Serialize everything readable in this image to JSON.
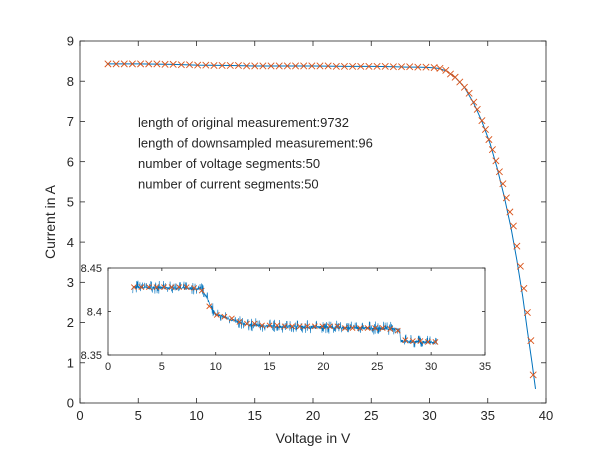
{
  "chart_data": [
    {
      "type": "line",
      "xlabel": "Voltage in V",
      "ylabel": "Current in A",
      "xlim": [
        0,
        40
      ],
      "ylim": [
        0,
        9
      ],
      "xticks": [
        0,
        5,
        10,
        15,
        20,
        25,
        30,
        35,
        40
      ],
      "yticks": [
        0,
        1,
        2,
        3,
        4,
        5,
        6,
        7,
        8,
        9
      ],
      "grid": false,
      "annotations": [
        "length of original measurement:9732",
        "length of downsampled measurement:96",
        "number of voltage segments:50",
        "number of current segments:50"
      ],
      "series": [
        {
          "style": "line",
          "color": "#0072bd",
          "x": [
            2.3,
            5,
            8,
            10,
            13,
            15,
            18,
            20,
            23,
            25,
            27,
            28,
            29,
            30,
            30.8,
            31.5,
            32.2,
            33,
            33.8,
            34.5,
            35.2,
            35.8,
            36.4,
            37,
            37.5,
            38,
            38.4,
            38.8,
            39.1
          ],
          "y": [
            8.43,
            8.43,
            8.42,
            8.4,
            8.39,
            8.38,
            8.38,
            8.38,
            8.37,
            8.37,
            8.36,
            8.35,
            8.35,
            8.34,
            8.32,
            8.25,
            8.1,
            7.85,
            7.45,
            7.0,
            6.45,
            5.85,
            5.15,
            4.35,
            3.55,
            2.65,
            1.8,
            1.0,
            0.35
          ]
        },
        {
          "style": "markers",
          "marker": "x",
          "color": "#d95319",
          "x": [
            2.4,
            3.1,
            3.8,
            4.5,
            5.2,
            5.9,
            6.6,
            7.3,
            8.0,
            8.7,
            9.4,
            10.1,
            10.8,
            11.5,
            12.2,
            12.9,
            13.6,
            14.3,
            15.0,
            15.7,
            16.4,
            17.1,
            17.8,
            18.5,
            19.2,
            19.9,
            20.6,
            21.3,
            22.0,
            22.7,
            23.4,
            24.1,
            24.8,
            25.5,
            26.2,
            26.9,
            27.6,
            28.3,
            29.0,
            29.7,
            30.4,
            30.9,
            31.4,
            31.8,
            32.2,
            32.6,
            33.0,
            33.4,
            33.8,
            34.1,
            34.5,
            34.8,
            35.1,
            35.4,
            35.7,
            36.0,
            36.3,
            36.6,
            36.9,
            37.2,
            37.5,
            37.8,
            38.1,
            38.4,
            38.7,
            38.9
          ],
          "y": [
            8.43,
            8.43,
            8.43,
            8.43,
            8.43,
            8.43,
            8.43,
            8.42,
            8.42,
            8.41,
            8.41,
            8.4,
            8.4,
            8.39,
            8.39,
            8.39,
            8.39,
            8.38,
            8.38,
            8.38,
            8.38,
            8.38,
            8.38,
            8.38,
            8.38,
            8.38,
            8.38,
            8.38,
            8.37,
            8.37,
            8.37,
            8.37,
            8.37,
            8.37,
            8.37,
            8.36,
            8.36,
            8.36,
            8.35,
            8.35,
            8.34,
            8.32,
            8.27,
            8.18,
            8.1,
            7.98,
            7.85,
            7.7,
            7.48,
            7.3,
            7.02,
            6.8,
            6.55,
            6.3,
            6.02,
            5.75,
            5.45,
            5.1,
            4.75,
            4.4,
            3.9,
            3.4,
            2.85,
            2.25,
            1.55,
            0.7
          ]
        }
      ]
    },
    {
      "type": "line",
      "xlim": [
        0,
        35
      ],
      "ylim": [
        8.35,
        8.45
      ],
      "xticks": [
        0,
        5,
        10,
        15,
        20,
        25,
        30,
        35
      ],
      "yticks": [
        8.35,
        8.4,
        8.45
      ],
      "grid": false,
      "series": [
        {
          "style": "noisy-line",
          "color": "#0072bd",
          "x": [
            2.3,
            8.6,
            9.0,
            9.5,
            10.0,
            11.0,
            12.0,
            13.0,
            15.0,
            27.0,
            27.2,
            30.5
          ],
          "y": [
            8.428,
            8.426,
            8.42,
            8.408,
            8.396,
            8.393,
            8.388,
            8.385,
            8.383,
            8.38,
            8.366,
            8.364
          ],
          "amplitude": 0.004
        },
        {
          "style": "markers",
          "marker": "x",
          "color": "#d95319",
          "x": [
            2.4,
            3.1,
            3.8,
            4.5,
            5.2,
            5.9,
            6.6,
            7.3,
            8.0,
            8.7,
            9.4,
            10.1,
            10.8,
            11.5,
            12.2,
            12.9,
            13.6,
            14.3,
            15.0,
            15.7,
            16.4,
            17.1,
            17.8,
            18.5,
            19.2,
            19.9,
            20.6,
            21.3,
            22.0,
            22.7,
            23.4,
            24.1,
            24.8,
            25.5,
            26.2,
            26.9,
            27.6,
            28.3,
            29.0,
            29.7,
            30.4
          ],
          "y": [
            8.428,
            8.428,
            8.428,
            8.428,
            8.428,
            8.428,
            8.428,
            8.428,
            8.427,
            8.424,
            8.406,
            8.396,
            8.394,
            8.392,
            8.388,
            8.386,
            8.386,
            8.384,
            8.384,
            8.384,
            8.383,
            8.383,
            8.383,
            8.383,
            8.383,
            8.383,
            8.383,
            8.383,
            8.381,
            8.381,
            8.381,
            8.381,
            8.381,
            8.381,
            8.38,
            8.378,
            8.367,
            8.366,
            8.366,
            8.365,
            8.365
          ]
        }
      ]
    }
  ]
}
